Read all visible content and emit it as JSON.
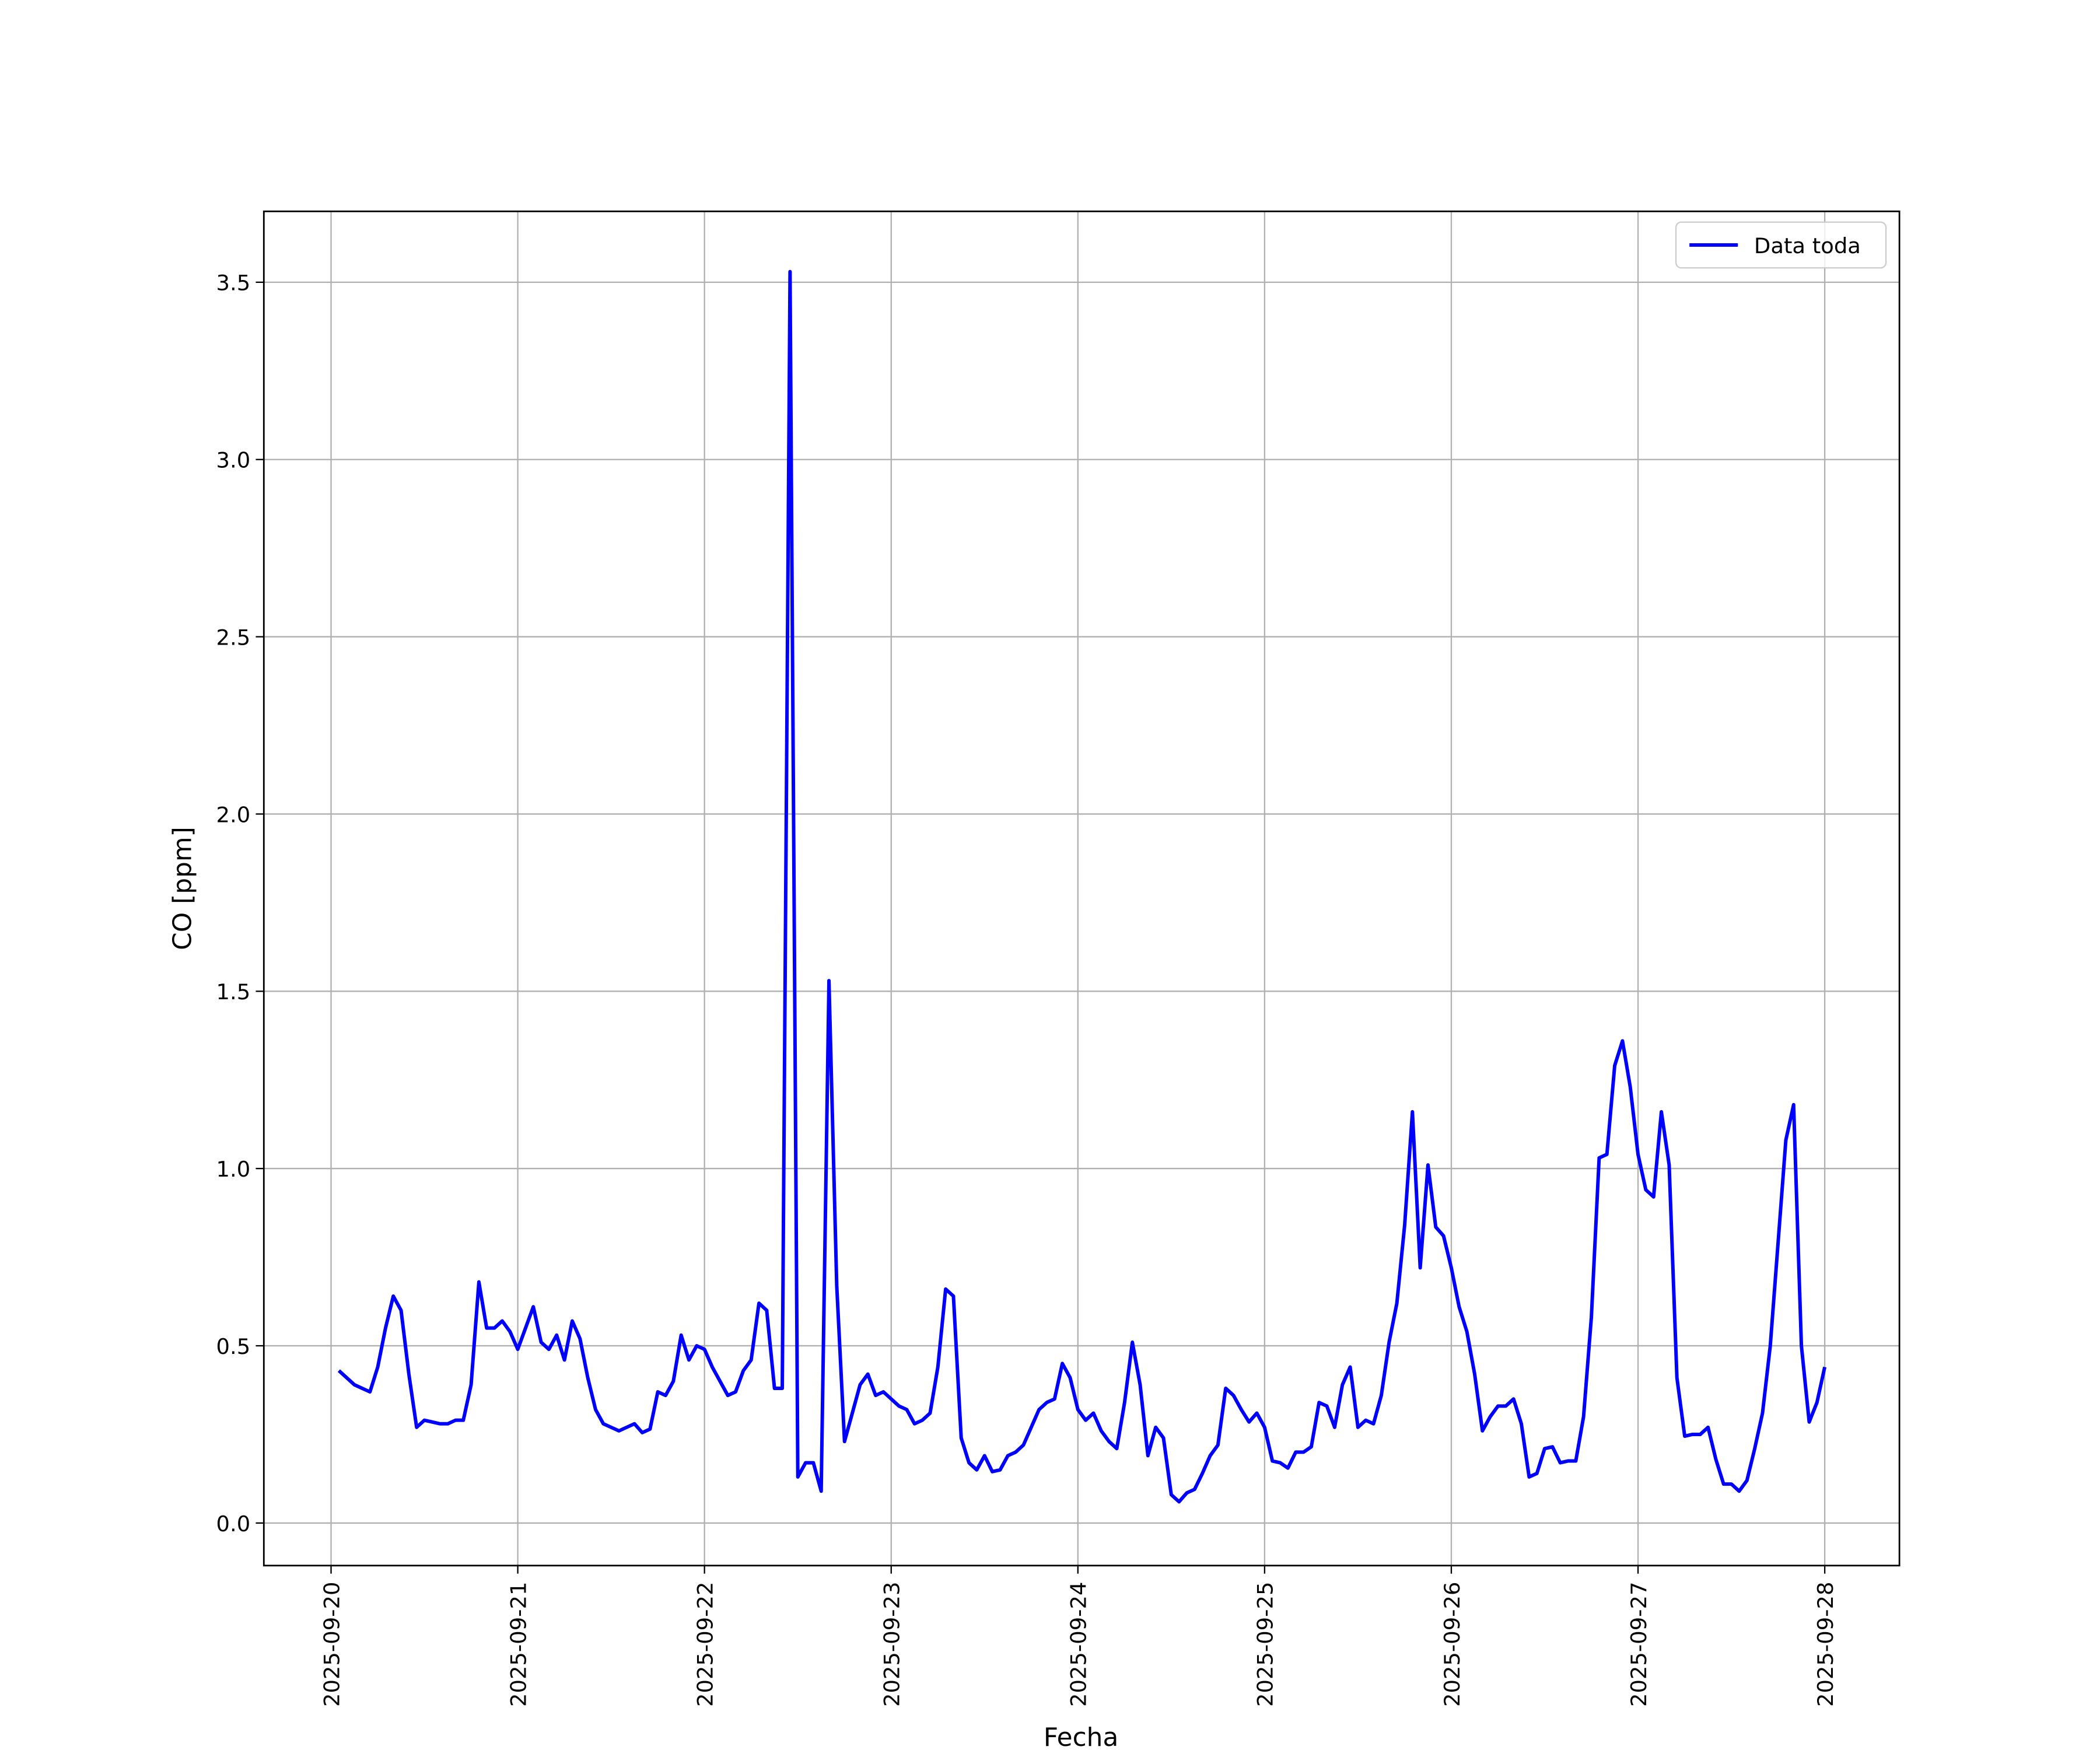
{
  "chart_data": {
    "type": "line",
    "xlabel": "Fecha",
    "ylabel": "CO [ppm]",
    "x": [
      0.0417,
      0.0833,
      0.125,
      0.1667,
      0.2083,
      0.25,
      0.2917,
      0.3333,
      0.375,
      0.4167,
      0.4583,
      0.5,
      0.5417,
      0.5833,
      0.625,
      0.6667,
      0.7083,
      0.75,
      0.7917,
      0.8333,
      0.875,
      0.9167,
      0.9583,
      1,
      1.0417,
      1.0833,
      1.125,
      1.1667,
      1.2083,
      1.25,
      1.2917,
      1.3333,
      1.375,
      1.4167,
      1.4583,
      1.5,
      1.5417,
      1.5833,
      1.625,
      1.6667,
      1.7083,
      1.75,
      1.7917,
      1.8333,
      1.875,
      1.9167,
      1.9583,
      2,
      2.0417,
      2.0833,
      2.125,
      2.1667,
      2.2083,
      2.25,
      2.2917,
      2.3333,
      2.375,
      2.4167,
      2.4583,
      2.5,
      2.5417,
      2.5833,
      2.625,
      2.6667,
      2.7083,
      2.75,
      2.7917,
      2.8333,
      2.875,
      2.9167,
      2.9583,
      3,
      3.0417,
      3.0833,
      3.125,
      3.1667,
      3.2083,
      3.25,
      3.2917,
      3.3333,
      3.375,
      3.4167,
      3.4583,
      3.5,
      3.5417,
      3.5833,
      3.625,
      3.6667,
      3.7083,
      3.75,
      3.7917,
      3.8333,
      3.875,
      3.9167,
      3.9583,
      4,
      4.0417,
      4.0833,
      4.125,
      4.1667,
      4.2083,
      4.25,
      4.2917,
      4.3333,
      4.375,
      4.4167,
      4.4583,
      4.5,
      4.5417,
      4.5833,
      4.625,
      4.6667,
      4.7083,
      4.75,
      4.7917,
      4.8333,
      4.875,
      4.9167,
      4.9583,
      5,
      5.0417,
      5.0833,
      5.125,
      5.1667,
      5.2083,
      5.25,
      5.2917,
      5.3333,
      5.375,
      5.4167,
      5.4583,
      5.5,
      5.5417,
      5.5833,
      5.625,
      5.6667,
      5.7083,
      5.75,
      5.7917,
      5.8333,
      5.875,
      5.9167,
      5.9583,
      6,
      6.0417,
      6.0833,
      6.125,
      6.1667,
      6.2083,
      6.25,
      6.2917,
      6.3333,
      6.375,
      6.4167,
      6.4583,
      6.5,
      6.5417,
      6.5833,
      6.625,
      6.6667,
      6.7083,
      6.75,
      6.7917,
      6.8333,
      6.875,
      6.9167,
      6.9583,
      7,
      7.0417,
      7.0833,
      7.125,
      7.1667,
      7.2083,
      7.25,
      7.2917,
      7.3333,
      7.375,
      7.4167,
      7.4583,
      7.5,
      7.5417,
      7.5833,
      7.625,
      7.6667,
      7.7083,
      7.75,
      7.7917,
      7.8333,
      7.875,
      7.9167,
      7.9583,
      8
    ],
    "series": [
      {
        "name": "Data toda",
        "color": "#0000ff",
        "values": [
          0.43,
          0.41,
          0.39,
          0.38,
          0.37,
          0.44,
          0.55,
          0.64,
          0.6,
          0.42,
          0.27,
          0.29,
          0.285,
          0.28,
          0.28,
          0.29,
          0.29,
          0.39,
          0.68,
          0.55,
          0.55,
          0.57,
          0.54,
          0.49,
          0.55,
          0.61,
          0.51,
          0.49,
          0.53,
          0.46,
          0.57,
          0.52,
          0.41,
          0.32,
          0.28,
          0.27,
          0.26,
          0.27,
          0.28,
          0.255,
          0.265,
          0.37,
          0.36,
          0.4,
          0.53,
          0.46,
          0.5,
          0.49,
          0.44,
          0.4,
          0.36,
          0.37,
          0.43,
          0.46,
          0.62,
          0.6,
          0.38,
          0.38,
          3.53,
          0.13,
          0.17,
          0.17,
          0.09,
          1.53,
          0.67,
          0.23,
          0.31,
          0.39,
          0.42,
          0.36,
          0.37,
          0.35,
          0.33,
          0.32,
          0.28,
          0.29,
          0.31,
          0.44,
          0.66,
          0.64,
          0.24,
          0.17,
          0.15,
          0.19,
          0.145,
          0.15,
          0.19,
          0.2,
          0.22,
          0.27,
          0.32,
          0.34,
          0.35,
          0.45,
          0.41,
          0.32,
          0.29,
          0.31,
          0.26,
          0.23,
          0.21,
          0.34,
          0.51,
          0.39,
          0.19,
          0.27,
          0.24,
          0.08,
          0.06,
          0.085,
          0.095,
          0.14,
          0.19,
          0.22,
          0.38,
          0.36,
          0.32,
          0.285,
          0.31,
          0.27,
          0.175,
          0.17,
          0.155,
          0.2,
          0.2,
          0.215,
          0.34,
          0.33,
          0.27,
          0.39,
          0.44,
          0.27,
          0.29,
          0.28,
          0.36,
          0.51,
          0.62,
          0.84,
          1.16,
          0.72,
          1.01,
          0.835,
          0.81,
          0.72,
          0.61,
          0.54,
          0.42,
          0.26,
          0.3,
          0.33,
          0.33,
          0.35,
          0.28,
          0.13,
          0.14,
          0.21,
          0.215,
          0.17,
          0.175,
          0.175,
          0.3,
          0.58,
          1.03,
          1.04,
          1.29,
          1.36,
          1.23,
          1.04,
          0.94,
          0.92,
          1.16,
          1.01,
          0.41,
          0.245,
          0.25,
          0.25,
          0.27,
          0.18,
          0.11,
          0.11,
          0.09,
          0.12,
          0.21,
          0.31,
          0.5,
          0.79,
          1.08,
          1.18,
          0.5,
          0.285,
          0.34,
          0.44
        ]
      }
    ],
    "xlim": [
      -0.36,
      8.4
    ],
    "xticks": [
      {
        "value": 0,
        "label": "2025-09-20"
      },
      {
        "value": 1,
        "label": "2025-09-21"
      },
      {
        "value": 2,
        "label": "2025-09-22"
      },
      {
        "value": 3,
        "label": "2025-09-23"
      },
      {
        "value": 4,
        "label": "2025-09-24"
      },
      {
        "value": 5,
        "label": "2025-09-25"
      },
      {
        "value": 6,
        "label": "2025-09-26"
      },
      {
        "value": 7,
        "label": "2025-09-27"
      },
      {
        "value": 8,
        "label": "2025-09-28"
      }
    ],
    "ylim": [
      -0.12,
      3.7
    ],
    "yticks": [
      {
        "value": 0,
        "label": "0.0"
      },
      {
        "value": 0.5,
        "label": "0.5"
      },
      {
        "value": 1,
        "label": "1.0"
      },
      {
        "value": 1.5,
        "label": "1.5"
      },
      {
        "value": 2,
        "label": "2.0"
      },
      {
        "value": 2.5,
        "label": "2.5"
      },
      {
        "value": 3,
        "label": "3.0"
      },
      {
        "value": 3.5,
        "label": "3.5"
      }
    ],
    "grid": true,
    "legend": "upper right"
  }
}
